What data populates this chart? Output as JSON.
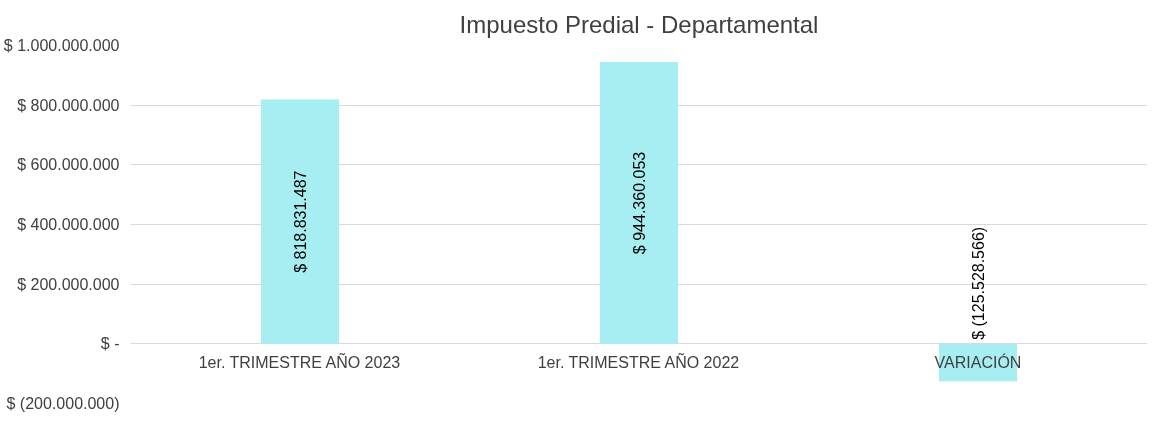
{
  "chart_data": {
    "type": "bar",
    "title": "Impuesto Predial - Departamental",
    "categories": [
      "1er. TRIMESTRE AÑO 2023",
      "1er. TRIMESTRE AÑO 2022",
      "VARIACIÓN"
    ],
    "values": [
      818831487,
      944360053,
      -125528566
    ],
    "value_labels": [
      "$ 818.831.487",
      "$ 944.360.053",
      "$ (125.528.566)"
    ],
    "color": "#a6eef2",
    "ylim": [
      -200000000,
      1000000000
    ],
    "yticks": [
      {
        "value": -200000000,
        "label": "$ (200.000.000)"
      },
      {
        "value": 0,
        "label": "$ -"
      },
      {
        "value": 200000000,
        "label": "$ 200.000.000"
      },
      {
        "value": 400000000,
        "label": "$ 400.000.000"
      },
      {
        "value": 600000000,
        "label": "$ 600.000.000"
      },
      {
        "value": 800000000,
        "label": "$ 800.000.000"
      },
      {
        "value": 1000000000,
        "label": "$ 1.000.000.000"
      }
    ],
    "grid": "y"
  }
}
